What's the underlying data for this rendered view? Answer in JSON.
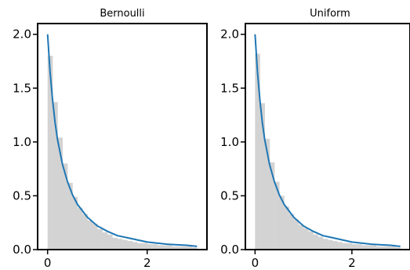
{
  "chart_data": [
    {
      "type": "area",
      "title": "Bernoulli",
      "xlim": [
        -0.2,
        3.2
      ],
      "ylim": [
        0,
        2.1
      ],
      "xticks": [
        0,
        2
      ],
      "xtick_labels": [
        "0",
        "2"
      ],
      "yticks": [
        0.0,
        0.5,
        1.0,
        1.5,
        2.0
      ],
      "ytick_labels": [
        "0.0",
        "0.5",
        "1.0",
        "1.5",
        "2.0"
      ],
      "grid": false,
      "series": [
        {
          "kind": "histogram",
          "color": "#d3d3d3",
          "x": [
            0.0,
            0.1,
            0.2,
            0.3,
            0.4,
            0.5,
            0.6,
            0.7,
            0.8,
            0.9,
            1.0,
            1.1,
            1.2,
            1.3,
            1.4,
            1.5,
            1.6,
            1.7,
            1.8,
            1.9,
            2.0,
            2.1,
            2.2,
            2.3,
            2.4,
            2.5,
            2.6,
            2.7,
            2.8,
            2.9
          ],
          "values": [
            1.8,
            1.37,
            1.04,
            0.8,
            0.62,
            0.49,
            0.39,
            0.33,
            0.27,
            0.24,
            0.19,
            0.16,
            0.14,
            0.11,
            0.1,
            0.09,
            0.08,
            0.07,
            0.06,
            0.06,
            0.05,
            0.05,
            0.04,
            0.04,
            0.04,
            0.03,
            0.03,
            0.03,
            0.03,
            0.02
          ]
        },
        {
          "kind": "line",
          "color": "#1f77b4",
          "x": [
            0.0,
            0.05,
            0.1,
            0.15,
            0.2,
            0.3,
            0.4,
            0.5,
            0.6,
            0.7,
            0.8,
            0.9,
            1.0,
            1.2,
            1.4,
            1.6,
            1.8,
            2.0,
            2.2,
            2.4,
            2.6,
            2.8,
            3.0
          ],
          "values": [
            2.0,
            1.65,
            1.39,
            1.18,
            1.02,
            0.79,
            0.63,
            0.51,
            0.42,
            0.36,
            0.3,
            0.26,
            0.22,
            0.17,
            0.13,
            0.11,
            0.09,
            0.07,
            0.06,
            0.05,
            0.045,
            0.04,
            0.03
          ]
        }
      ]
    },
    {
      "type": "area",
      "title": "Uniform",
      "xlim": [
        -0.2,
        3.2
      ],
      "ylim": [
        0,
        2.1
      ],
      "xticks": [
        0,
        2
      ],
      "xtick_labels": [
        "0",
        "2"
      ],
      "yticks": [
        0.0,
        0.5,
        1.0,
        1.5,
        2.0
      ],
      "ytick_labels": [
        "0.0",
        "0.5",
        "1.0",
        "1.5",
        "2.0"
      ],
      "grid": false,
      "series": [
        {
          "kind": "histogram",
          "color": "#d3d3d3",
          "x": [
            0.0,
            0.1,
            0.2,
            0.3,
            0.4,
            0.5,
            0.6,
            0.7,
            0.8,
            0.9,
            1.0,
            1.1,
            1.2,
            1.3,
            1.4,
            1.5,
            1.6,
            1.7,
            1.8,
            1.9,
            2.0,
            2.1,
            2.2,
            2.3,
            2.4,
            2.5,
            2.6,
            2.7,
            2.8,
            2.9
          ],
          "values": [
            1.82,
            1.36,
            1.03,
            0.81,
            0.63,
            0.5,
            0.4,
            0.33,
            0.28,
            0.23,
            0.2,
            0.17,
            0.14,
            0.12,
            0.1,
            0.09,
            0.08,
            0.07,
            0.06,
            0.06,
            0.05,
            0.05,
            0.04,
            0.04,
            0.04,
            0.03,
            0.03,
            0.03,
            0.03,
            0.02
          ]
        },
        {
          "kind": "line",
          "color": "#1f77b4",
          "x": [
            0.0,
            0.05,
            0.1,
            0.15,
            0.2,
            0.3,
            0.4,
            0.5,
            0.6,
            0.7,
            0.8,
            0.9,
            1.0,
            1.2,
            1.4,
            1.6,
            1.8,
            2.0,
            2.2,
            2.4,
            2.6,
            2.8,
            3.0
          ],
          "values": [
            2.0,
            1.65,
            1.39,
            1.18,
            1.02,
            0.79,
            0.63,
            0.51,
            0.42,
            0.36,
            0.3,
            0.26,
            0.22,
            0.17,
            0.13,
            0.11,
            0.09,
            0.07,
            0.06,
            0.05,
            0.045,
            0.04,
            0.03
          ]
        }
      ]
    }
  ]
}
